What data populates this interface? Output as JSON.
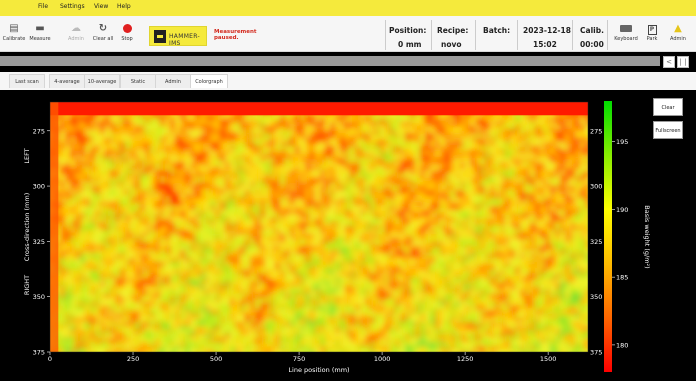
{
  "menu": [
    "File",
    "Settings",
    "View",
    "Help"
  ],
  "toolbar": {
    "calibrate": "Calibrate",
    "measure": "Measure",
    "admin_disabled": "Admin",
    "clear_all": "Clear all",
    "stop": "Stop",
    "keyboard": "Keyboard",
    "park": "Park",
    "admin": "Admin"
  },
  "brand": {
    "logo_text": "HAMMER-IMS"
  },
  "status_message": "Measurement paused.",
  "info": {
    "position_label": "Position:",
    "position_value": "0 mm",
    "recipe_label": "Recipe:",
    "recipe_value": "novo",
    "batch_label": "Batch:",
    "batch_date": "2023-12-18",
    "batch_time": "15:02",
    "calib_label": "Calib.",
    "calib_value": "00:00"
  },
  "nav": {
    "prev": "<",
    "pause": "| |"
  },
  "tabs": [
    "Last scan",
    "4-average",
    "10-average",
    "Static",
    "Admin",
    "Colorgraph"
  ],
  "active_tab": "Colorgraph",
  "side_buttons": {
    "clear": "Clear",
    "fullscreen": "Fullscreen"
  },
  "chart_data": {
    "type": "heatmap",
    "title": "",
    "xlabel": "Line position (mm)",
    "ylabel": "Cross-direction (mm)",
    "y_side_labels": {
      "top": "LEFT",
      "bottom": "RIGHT"
    },
    "x_ticks": [
      "0",
      "250",
      "500",
      "750",
      "1000",
      "1250",
      "1500"
    ],
    "x_tick_values": [
      0,
      250,
      500,
      750,
      1000,
      1250,
      1500
    ],
    "x_range": [
      0,
      1620
    ],
    "y_ticks": [
      "275",
      "300",
      "325",
      "350",
      "375"
    ],
    "y_tick_values": [
      275,
      300,
      325,
      350,
      375
    ],
    "y_range": [
      262,
      375
    ],
    "colorbar": {
      "label": "Basis weight (g/m²)",
      "ticks": [
        "195",
        "190",
        "185",
        "180"
      ],
      "tick_values": [
        195,
        190,
        185,
        180
      ],
      "range": [
        178,
        198
      ],
      "colors": [
        "#00dd00",
        "#88ee00",
        "#ffff00",
        "#ffbb00",
        "#ff6600",
        "#ff0000"
      ]
    },
    "features": {
      "top_band_red_until": 268,
      "vertical_red_streak_x": [
        0,
        25
      ]
    }
  }
}
